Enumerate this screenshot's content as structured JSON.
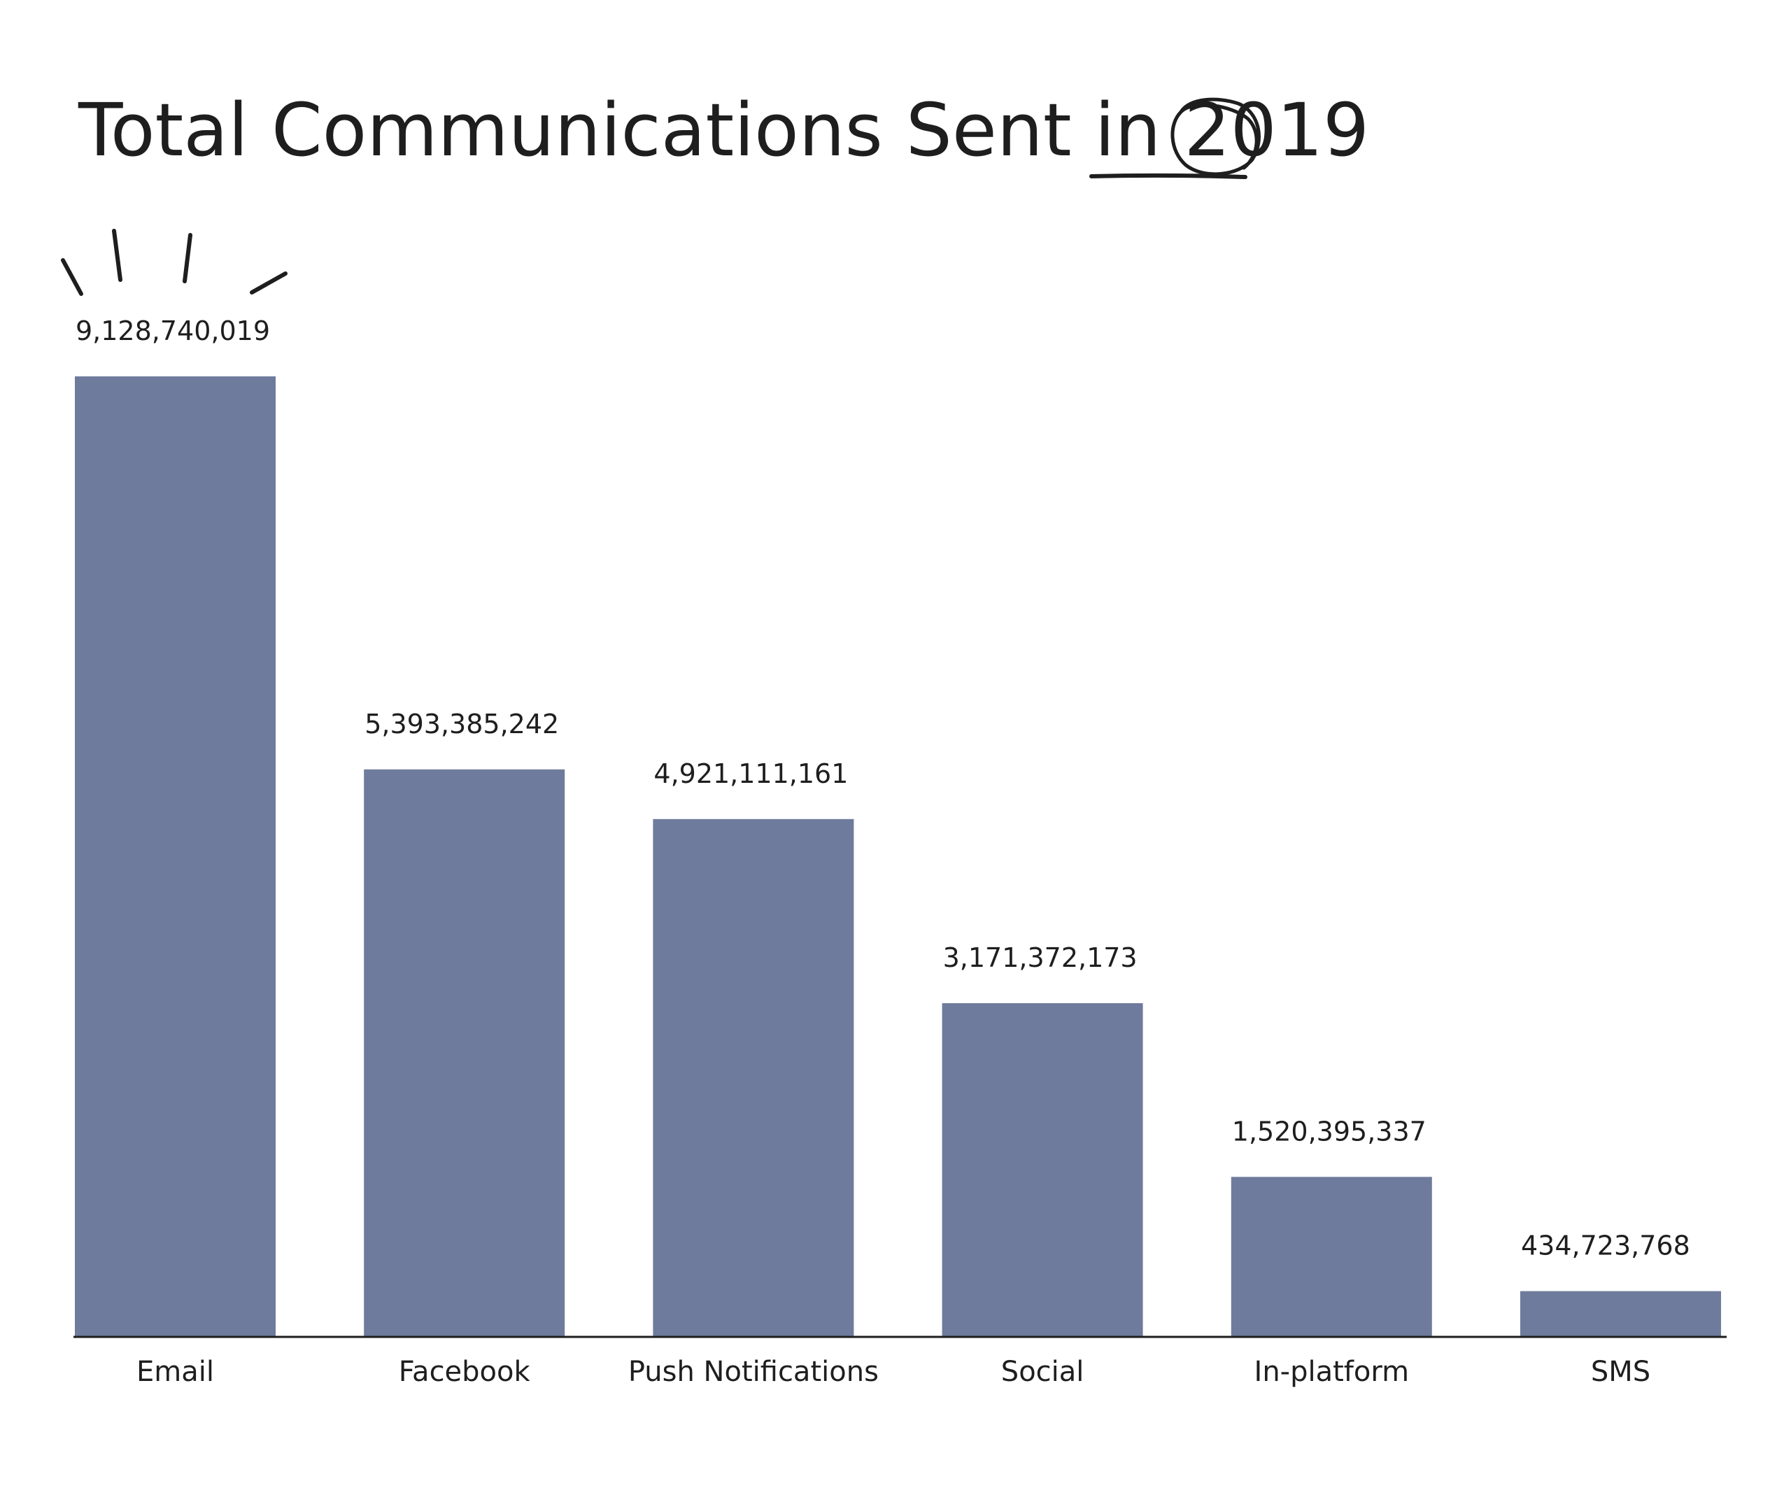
{
  "chart_data": {
    "type": "bar",
    "title": "Total Communications Sent in 2019",
    "title_prefix": "Total Communications Sent in ",
    "title_year": "2019",
    "categories": [
      "Email",
      "Facebook",
      "Push Notifications",
      "Social",
      "In-platform",
      "SMS"
    ],
    "values": [
      9128740019,
      5393385242,
      4921111161,
      3171372173,
      1520395337,
      434723768
    ],
    "value_labels": [
      "9,128,740,019",
      "5,393,385,242",
      "4,921,111,161",
      "3,171,372,173",
      "1,520,395,337",
      "434,723,768"
    ],
    "xlabel": "",
    "ylabel": "",
    "ylim": [
      0,
      9128740019
    ],
    "grid": false,
    "legend": "none"
  },
  "colors": {
    "bar": "#6e7b9c",
    "text": "#1e1e1e",
    "axis": "#1e1e1e",
    "background": "#ffffff"
  }
}
